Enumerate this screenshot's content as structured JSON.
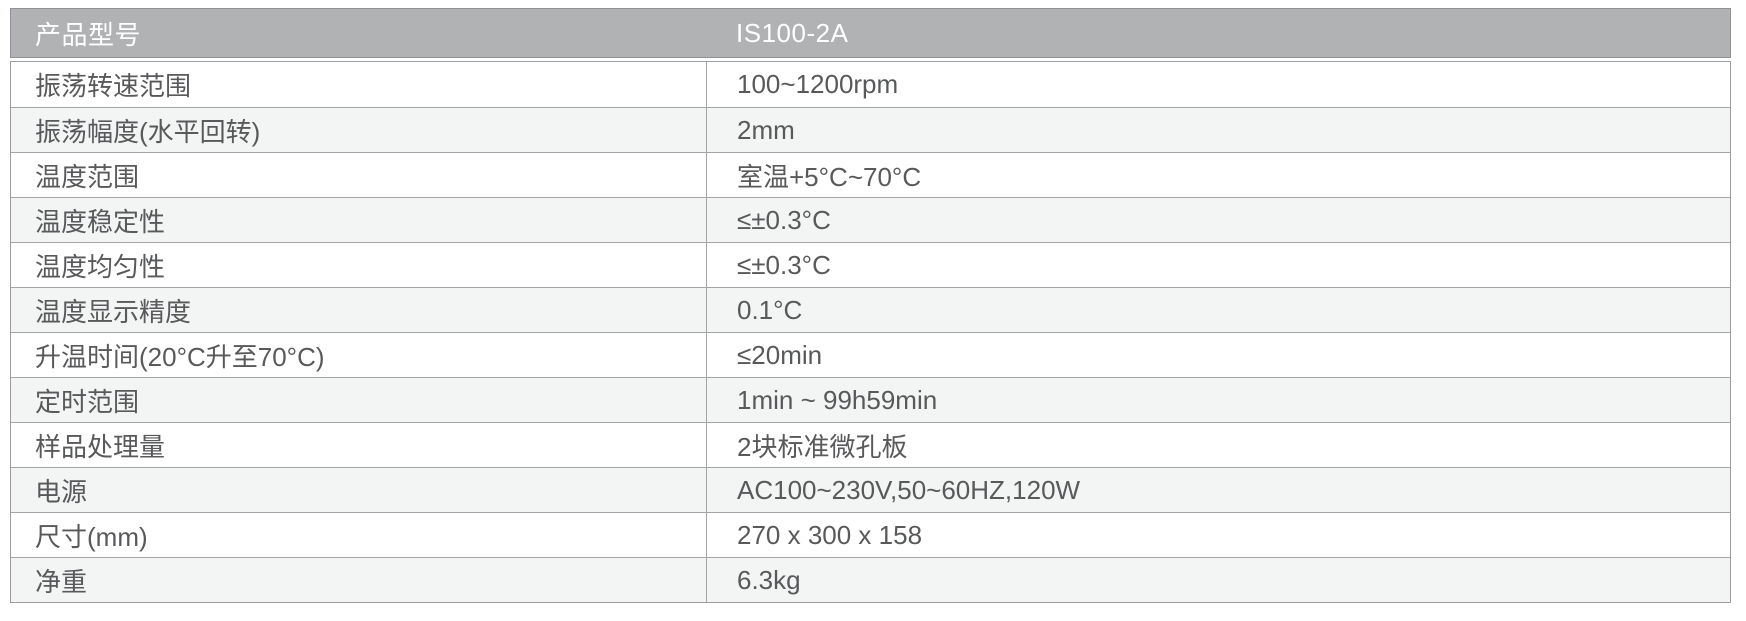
{
  "header": {
    "label": "产品型号",
    "value": "IS100-2A"
  },
  "table": {
    "rows": [
      {
        "label": "振荡转速范围",
        "value": "100~1200rpm"
      },
      {
        "label": "振荡幅度(水平回转)",
        "value": "2mm"
      },
      {
        "label": "温度范围",
        "value": "室温+5°C~70°C"
      },
      {
        "label": "温度稳定性",
        "value": "≤±0.3°C"
      },
      {
        "label": "温度均匀性",
        "value": "≤±0.3°C"
      },
      {
        "label": "温度显示精度",
        "value": "0.1°C"
      },
      {
        "label": "升温时间(20°C升至70°C)",
        "value": "≤20min"
      },
      {
        "label": "定时范围",
        "value": "1min ~ 99h59min"
      },
      {
        "label": "样品处理量",
        "value": "2块标准微孔板"
      },
      {
        "label": "电源",
        "value": "AC100~230V,50~60HZ,120W"
      },
      {
        "label": "尺寸(mm)",
        "value": "270 x 300 x 158"
      },
      {
        "label": "净重",
        "value": "6.3kg"
      }
    ]
  },
  "colors": {
    "header_bg": "#b0b2b4",
    "header_text": "#ffffff",
    "row_alt_bg": "#f3f4f4",
    "border": "#9b9da0",
    "body_text": "#58595b"
  }
}
